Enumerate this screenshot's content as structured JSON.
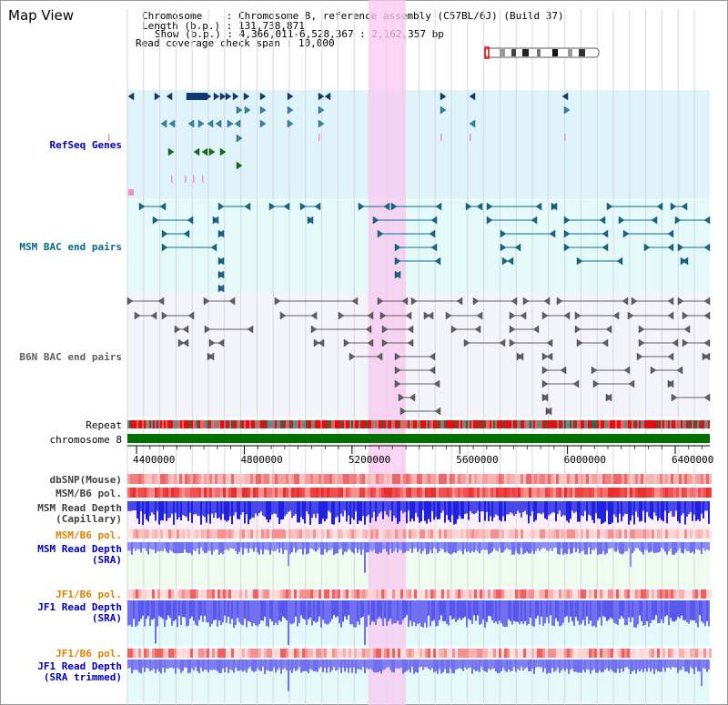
{
  "title": "Map View",
  "info": {
    "chromosome_label": "Chromosome",
    "chromosome_value": "Chromosome 8, reference assembly (C57BL/6J) (Build 37)",
    "length_label": "Length (b.p.)",
    "length_value": "131,738,871",
    "show_label": "Show (b.p.)",
    "show_value": "4,366,011-6,528,367 : 2,162,357 bp",
    "coverage_label": "Read coverage check span",
    "coverage_value": "10,000"
  },
  "tracks": {
    "refseq": "RefSeq Genes",
    "msm_bac": "MSM BAC end pairs",
    "b6n_bac": "B6N BAC end pairs",
    "repeat": "Repeat",
    "chromosome": "chromosome 8",
    "dbsnp": "dbSNP(Mouse)",
    "msm_b6_pol_1": "MSM/B6 pol.",
    "msm_depth_cap_1": "MSM Read Depth",
    "msm_depth_cap_2": "(Capillary)",
    "msm_b6_pol_2": "MSM/B6 pol.",
    "msm_depth_sra_1": "MSM Read Depth",
    "msm_depth_sra_2": "(SRA)",
    "jf1_b6_pol_1": "JF1/B6 pol.",
    "jf1_depth_sra_1": "JF1 Read Depth",
    "jf1_depth_sra_2": "(SRA)",
    "jf1_b6_pol_2": "JF1/B6 pol.",
    "jf1_depth_trim_1": "JF1 Read Depth",
    "jf1_depth_trim_2": "(SRA trimmed)"
  },
  "axis": {
    "ticks": [
      {
        "label": "4400000",
        "value": 4400000
      },
      {
        "label": "4800000",
        "value": 4800000
      },
      {
        "label": "5200000",
        "value": 5200000
      },
      {
        "label": "5600000",
        "value": 5600000
      },
      {
        "label": "6000000",
        "value": 6000000
      },
      {
        "label": "6400000",
        "value": 6400000
      }
    ],
    "start": 4366011,
    "end": 6528367
  },
  "highlight": {
    "start": 5260000,
    "end": 5400000
  },
  "colors": {
    "refseq_bg": "#dff3fb",
    "msm_bg": "#e4fafa",
    "b6n_bg": "#f3f3fa",
    "highlight": "#f8c8f0",
    "chromosome_bar": "#007000",
    "refseq_dark": "#0a3a78",
    "refseq_mid": "#2a8aa8",
    "refseq_green": "#107010",
    "refseq_pink": "#f090c0",
    "msm_line": "#0a6a90",
    "b6n_line": "#606060",
    "depth_blue": "#2020e0",
    "depth_light": "#7070f0",
    "label_blue": "#0000c0",
    "label_teal": "#006c84",
    "label_orange": "#e08000"
  }
}
